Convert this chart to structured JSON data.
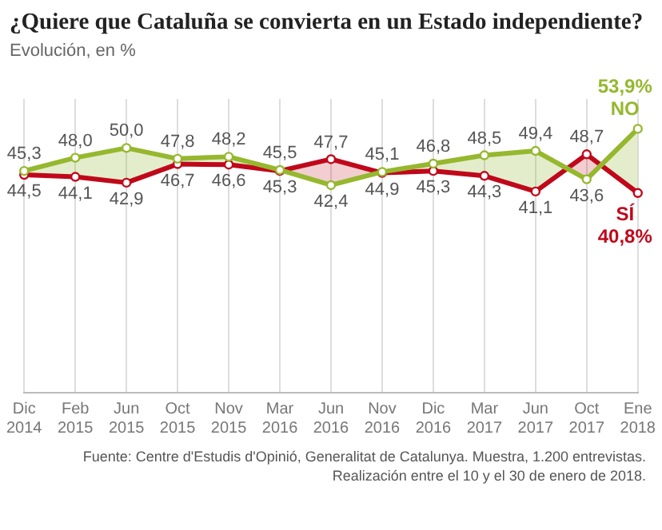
{
  "chart_data": {
    "type": "line",
    "title": "¿Quiere que Cataluña se convierta en un Estado independiente?",
    "subtitle": "Evolución, en %",
    "categories": [
      "Dic\n2014",
      "Feb\n2015",
      "Jun\n2015",
      "Oct\n2015",
      "Nov\n2015",
      "Mar\n2016",
      "Jun\n2016",
      "Nov\n2016",
      "Dic\n2016",
      "Mar\n2017",
      "Jun\n2017",
      "Oct\n2017",
      "Ene\n2018"
    ],
    "series": [
      {
        "name": "NO",
        "color": "#95b82e",
        "values": [
          45.3,
          48.0,
          50.0,
          47.8,
          48.2,
          45.5,
          42.4,
          45.1,
          46.8,
          48.5,
          49.4,
          43.6,
          53.9
        ],
        "value_labels": [
          "45,3",
          "48,0",
          "50,0",
          "47,8",
          "48,2",
          "45,5",
          "42,4",
          "45,1",
          "46,8",
          "48,5",
          "49,4",
          "43,6",
          "53,9%"
        ],
        "lower": [
          44.5,
          44.1,
          42.9,
          46.7,
          46.6,
          45.3,
          47.7,
          44.9,
          45.3,
          44.3,
          41.1,
          48.7,
          40.8
        ],
        "upper": [
          45.3,
          48.0,
          50.0,
          47.8,
          48.2,
          45.5,
          42.4,
          45.1,
          46.8,
          48.5,
          49.4,
          43.6,
          53.9
        ]
      },
      {
        "name": "SÍ",
        "color": "#c0081b",
        "values": [
          44.5,
          44.1,
          42.9,
          46.7,
          46.6,
          45.3,
          47.7,
          44.9,
          45.3,
          44.3,
          41.1,
          48.7,
          40.8
        ],
        "value_labels": [
          "44,5",
          "44,1",
          "42,9",
          "46,7",
          "46,6",
          "45,3",
          "47,7",
          "44,9",
          "45,3",
          "44,3",
          "41,1",
          "48,7",
          "40,8%"
        ]
      }
    ],
    "ylim": [
      0,
      60
    ],
    "grid": "x",
    "marker": "circle",
    "line_style": "solid",
    "legend": false,
    "annotations": [
      "Fuente: Centre d'Estudis d'Opinió, Generalitat de Catalunya. Muestra, 1.200 entrevistas.",
      "Realización entre el 10 y el 30 de enero de 2018."
    ]
  }
}
